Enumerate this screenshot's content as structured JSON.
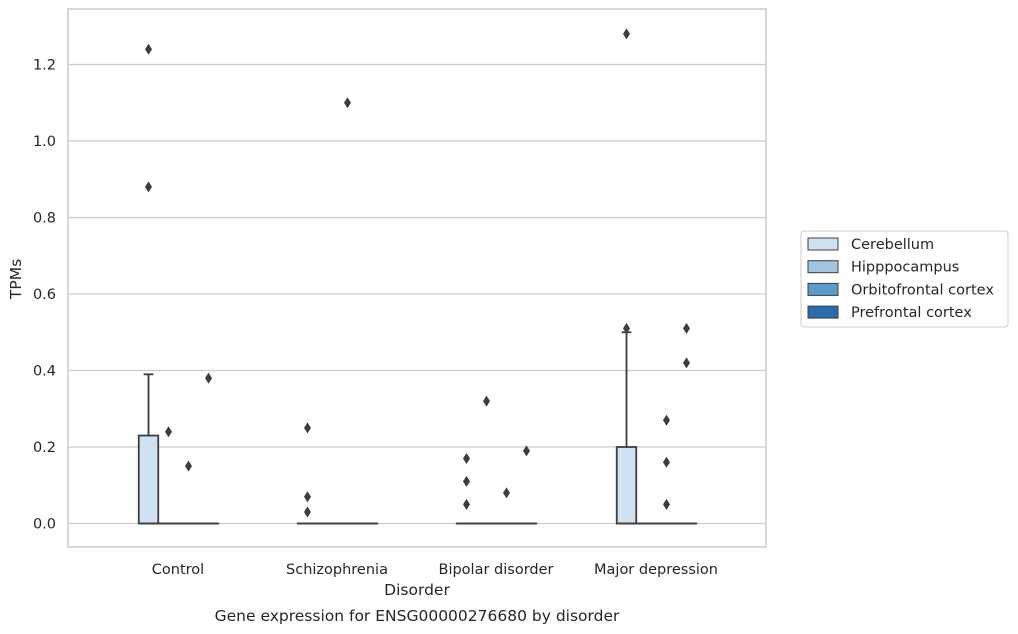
{
  "chart_data": {
    "type": "box",
    "title": "",
    "caption": "Gene expression for ENSG00000276680 by disorder",
    "xlabel": "Disorder",
    "ylabel": "TPMs",
    "ylim": [
      -0.064,
      1.347
    ],
    "yticks": [
      0.0,
      0.2,
      0.4,
      0.6,
      0.8,
      1.0,
      1.2
    ],
    "ytick_labels": [
      "0.0",
      "0.2",
      "0.4",
      "0.6",
      "0.8",
      "1.0",
      "1.2"
    ],
    "grid": "horizontal",
    "legend_position": "right",
    "categories": [
      "Control",
      "Schizophrenia",
      "Bipolar disorder",
      "Major depression"
    ],
    "series": [
      {
        "name": "Cerebellum",
        "color": "#d0e1f1",
        "boxes": [
          {
            "category": "Control",
            "q1": 0.0,
            "median": 0.0,
            "q3": 0.23,
            "whisker_low": 0.0,
            "whisker_high": 0.39,
            "outliers": [
              0.88,
              1.24
            ]
          },
          {
            "category": "Schizophrenia",
            "q1": 0.0,
            "median": 0.0,
            "q3": 0.0,
            "whisker_low": 0.0,
            "whisker_high": 0.0,
            "outliers": [
              0.25,
              0.07,
              0.03
            ]
          },
          {
            "category": "Bipolar disorder",
            "q1": 0.0,
            "median": 0.0,
            "q3": 0.0,
            "whisker_low": 0.0,
            "whisker_high": 0.0,
            "outliers": [
              0.17,
              0.11,
              0.05
            ]
          },
          {
            "category": "Major depression",
            "q1": 0.0,
            "median": 0.0,
            "q3": 0.2,
            "whisker_low": 0.0,
            "whisker_high": 0.5,
            "outliers": [
              1.28,
              0.51
            ]
          }
        ]
      },
      {
        "name": "Hipppocampus",
        "color": "#9fc5e0",
        "boxes": [
          {
            "category": "Control",
            "q1": 0.0,
            "median": 0.0,
            "q3": 0.0,
            "whisker_low": 0.0,
            "whisker_high": 0.0,
            "outliers": [
              0.24
            ]
          },
          {
            "category": "Schizophrenia",
            "q1": 0.0,
            "median": 0.0,
            "q3": 0.0,
            "whisker_low": 0.0,
            "whisker_high": 0.0,
            "outliers": []
          },
          {
            "category": "Bipolar disorder",
            "q1": 0.0,
            "median": 0.0,
            "q3": 0.0,
            "whisker_low": 0.0,
            "whisker_high": 0.0,
            "outliers": [
              0.32
            ]
          },
          {
            "category": "Major depression",
            "q1": 0.0,
            "median": 0.0,
            "q3": 0.0,
            "whisker_low": 0.0,
            "whisker_high": 0.0,
            "outliers": []
          }
        ]
      },
      {
        "name": "Orbitofrontal cortex",
        "color": "#5a9bc9",
        "boxes": [
          {
            "category": "Control",
            "q1": 0.0,
            "median": 0.0,
            "q3": 0.0,
            "whisker_low": 0.0,
            "whisker_high": 0.0,
            "outliers": [
              0.15
            ]
          },
          {
            "category": "Schizophrenia",
            "q1": 0.0,
            "median": 0.0,
            "q3": 0.0,
            "whisker_low": 0.0,
            "whisker_high": 0.0,
            "outliers": [
              1.1
            ]
          },
          {
            "category": "Bipolar disorder",
            "q1": 0.0,
            "median": 0.0,
            "q3": 0.0,
            "whisker_low": 0.0,
            "whisker_high": 0.0,
            "outliers": [
              0.08
            ]
          },
          {
            "category": "Major depression",
            "q1": 0.0,
            "median": 0.0,
            "q3": 0.0,
            "whisker_low": 0.0,
            "whisker_high": 0.0,
            "outliers": [
              0.27,
              0.16,
              0.05
            ]
          }
        ]
      },
      {
        "name": "Prefrontal cortex",
        "color": "#2a6cab",
        "boxes": [
          {
            "category": "Control",
            "q1": 0.0,
            "median": 0.0,
            "q3": 0.0,
            "whisker_low": 0.0,
            "whisker_high": 0.0,
            "outliers": [
              0.38
            ]
          },
          {
            "category": "Schizophrenia",
            "q1": 0.0,
            "median": 0.0,
            "q3": 0.0,
            "whisker_low": 0.0,
            "whisker_high": 0.0,
            "outliers": []
          },
          {
            "category": "Bipolar disorder",
            "q1": 0.0,
            "median": 0.0,
            "q3": 0.0,
            "whisker_low": 0.0,
            "whisker_high": 0.0,
            "outliers": [
              0.19
            ]
          },
          {
            "category": "Major depression",
            "q1": 0.0,
            "median": 0.0,
            "q3": 0.0,
            "whisker_low": 0.0,
            "whisker_high": 0.0,
            "outliers": [
              0.51,
              0.42
            ]
          }
        ]
      }
    ],
    "colors": {
      "grid": "#cccccc",
      "frame": "#cccccc",
      "box_edge": "#3d3d3d",
      "outlier": "#3d3d3d",
      "text": "#262626"
    }
  }
}
